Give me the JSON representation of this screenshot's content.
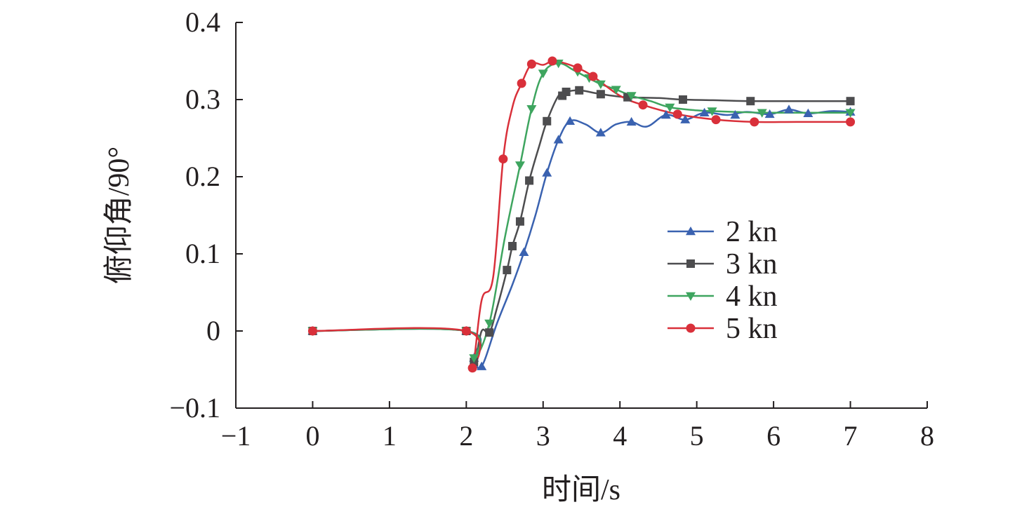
{
  "chart_data": {
    "type": "line",
    "title": "",
    "xlabel": "时间/s",
    "ylabel": "俯仰角/90°",
    "xlim": [
      -1,
      8
    ],
    "ylim": [
      -0.1,
      0.4
    ],
    "xticks": [
      -1,
      0,
      1,
      2,
      3,
      4,
      5,
      6,
      7,
      8
    ],
    "xtick_labels": [
      "−1",
      "0",
      "1",
      "2",
      "3",
      "4",
      "5",
      "6",
      "7",
      "8"
    ],
    "yticks": [
      -0.1,
      0,
      0.1,
      0.2,
      0.3,
      0.4
    ],
    "ytick_labels": [
      "−0.1",
      "0",
      "0.1",
      "0.2",
      "0.3",
      "0.4"
    ],
    "grid": false,
    "legend_position": "right",
    "series": [
      {
        "name": "2 kn",
        "color": "#3a62b0",
        "marker": "triangle-up",
        "x": [
          0,
          2,
          2.1,
          2.2,
          2.4,
          2.6,
          2.75,
          2.9,
          3.05,
          3.2,
          3.35,
          3.55,
          3.75,
          3.95,
          4.15,
          4.35,
          4.6,
          4.85,
          5.1,
          5.4,
          5.65,
          5.95,
          6.2,
          6.45,
          6.75,
          7
        ],
        "y": [
          0,
          0,
          -0.035,
          -0.046,
          0.01,
          0.06,
          0.102,
          0.15,
          0.205,
          0.248,
          0.272,
          0.268,
          0.257,
          0.268,
          0.271,
          0.265,
          0.28,
          0.274,
          0.283,
          0.28,
          0.284,
          0.281,
          0.287,
          0.282,
          0.285,
          0.284
        ],
        "marker_x": [
          0,
          2,
          2.1,
          2.2,
          2.75,
          3.05,
          3.2,
          3.35,
          3.75,
          4.15,
          4.6,
          4.85,
          5.1,
          5.5,
          5.95,
          6.2,
          6.45,
          7
        ],
        "marker_y": [
          0,
          0,
          -0.035,
          -0.046,
          0.102,
          0.205,
          0.248,
          0.272,
          0.257,
          0.271,
          0.28,
          0.274,
          0.283,
          0.28,
          0.281,
          0.287,
          0.282,
          0.284
        ]
      },
      {
        "name": "3 kn",
        "color": "#4d4d4f",
        "marker": "square",
        "x": [
          0,
          2,
          2.1,
          2.2,
          2.3,
          2.4,
          2.53,
          2.6,
          2.7,
          2.82,
          2.95,
          3.05,
          3.2,
          3.3,
          3.47,
          3.7,
          3.9,
          4.1,
          4.5,
          4.82,
          5.3,
          5.7,
          6.3,
          7
        ],
        "y": [
          0,
          0,
          -0.04,
          0.0,
          -0.002,
          0.03,
          0.079,
          0.11,
          0.142,
          0.195,
          0.24,
          0.272,
          0.305,
          0.31,
          0.312,
          0.308,
          0.305,
          0.303,
          0.302,
          0.3,
          0.299,
          0.298,
          0.298,
          0.298
        ],
        "marker_x": [
          0,
          2,
          2.1,
          2.3,
          2.53,
          2.6,
          2.7,
          2.82,
          3.05,
          3.25,
          3.3,
          3.47,
          3.75,
          4.1,
          4.82,
          5.7,
          7
        ],
        "marker_y": [
          0,
          0,
          -0.04,
          -0.002,
          0.079,
          0.11,
          0.142,
          0.195,
          0.272,
          0.305,
          0.31,
          0.312,
          0.307,
          0.303,
          0.3,
          0.298,
          0.298
        ]
      },
      {
        "name": "4 kn",
        "color": "#3ea55f",
        "marker": "triangle-down",
        "x": [
          0,
          2,
          2.1,
          2.3,
          2.5,
          2.7,
          2.85,
          3.0,
          3.2,
          3.4,
          3.55,
          3.75,
          3.95,
          4.15,
          4.4,
          4.65,
          5.0,
          5.2,
          5.5,
          5.85,
          6.2,
          6.6,
          7
        ],
        "y": [
          0,
          0,
          -0.035,
          0.01,
          0.12,
          0.215,
          0.288,
          0.334,
          0.347,
          0.338,
          0.33,
          0.32,
          0.313,
          0.305,
          0.298,
          0.29,
          0.286,
          0.285,
          0.284,
          0.283,
          0.283,
          0.283,
          0.283
        ],
        "marker_x": [
          0,
          2,
          2.1,
          2.3,
          2.7,
          2.85,
          3.0,
          3.2,
          3.45,
          3.6,
          3.75,
          3.95,
          4.15,
          4.65,
          5.2,
          5.85,
          7
        ],
        "marker_y": [
          0,
          0,
          -0.035,
          0.01,
          0.215,
          0.288,
          0.334,
          0.347,
          0.336,
          0.328,
          0.32,
          0.313,
          0.305,
          0.29,
          0.285,
          0.283,
          0.283
        ]
      },
      {
        "name": "5 kn",
        "color": "#d9303a",
        "marker": "circle",
        "x": [
          0,
          2,
          2.08,
          2.2,
          2.35,
          2.48,
          2.6,
          2.72,
          2.85,
          3.0,
          3.12,
          3.25,
          3.45,
          3.65,
          4.0,
          4.3,
          4.75,
          5.25,
          5.75,
          6.3,
          7
        ],
        "y": [
          0,
          0,
          -0.048,
          0.04,
          0.07,
          0.223,
          0.29,
          0.321,
          0.346,
          0.345,
          0.35,
          0.348,
          0.341,
          0.33,
          0.305,
          0.293,
          0.281,
          0.274,
          0.271,
          0.271,
          0.271
        ],
        "marker_x": [
          0,
          2,
          2.08,
          2.48,
          2.72,
          2.85,
          3.12,
          3.45,
          3.65,
          4.3,
          4.75,
          5.25,
          5.75,
          7
        ],
        "marker_y": [
          0,
          0,
          -0.048,
          0.223,
          0.321,
          0.346,
          0.35,
          0.341,
          0.33,
          0.293,
          0.281,
          0.274,
          0.271,
          0.271
        ]
      }
    ]
  }
}
